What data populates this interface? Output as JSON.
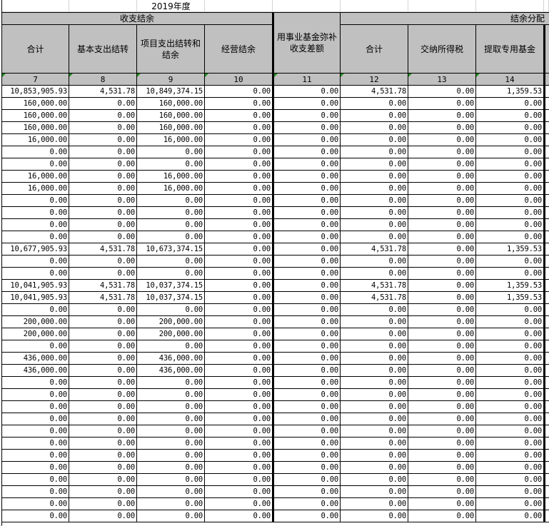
{
  "year_label": "2019年度",
  "groups": {
    "surplus": "收支结余",
    "distribution": "结余分配"
  },
  "columns": [
    {
      "label": "合计",
      "no": "7"
    },
    {
      "label": "基本支出结转",
      "no": "8"
    },
    {
      "label": "项目支出结转和结余",
      "no": "9"
    },
    {
      "label": "经营结余",
      "no": "10"
    },
    {
      "label": "用事业基金弥补收支差额",
      "no": "11"
    },
    {
      "label": "合计",
      "no": "12"
    },
    {
      "label": "交纳所得税",
      "no": "13"
    },
    {
      "label": "提取专用基金",
      "no": "14"
    }
  ],
  "colors": {
    "header_bg": "#c0c0c0",
    "marker": "#1e8c1e"
  },
  "rows": [
    [
      "10,853,905.93",
      "4,531.78",
      "10,849,374.15",
      "0.00",
      "0.00",
      "4,531.78",
      "0.00",
      "1,359.53"
    ],
    [
      "160,000.00",
      "0.00",
      "160,000.00",
      "0.00",
      "0.00",
      "0.00",
      "0.00",
      "0.00"
    ],
    [
      "160,000.00",
      "0.00",
      "160,000.00",
      "0.00",
      "0.00",
      "0.00",
      "0.00",
      "0.00"
    ],
    [
      "160,000.00",
      "0.00",
      "160,000.00",
      "0.00",
      "0.00",
      "0.00",
      "0.00",
      "0.00"
    ],
    [
      "16,000.00",
      "0.00",
      "16,000.00",
      "0.00",
      "0.00",
      "0.00",
      "0.00",
      "0.00"
    ],
    [
      "0.00",
      "0.00",
      "0.00",
      "0.00",
      "0.00",
      "0.00",
      "0.00",
      "0.00"
    ],
    [
      "0.00",
      "0.00",
      "0.00",
      "0.00",
      "0.00",
      "0.00",
      "0.00",
      "0.00"
    ],
    [
      "16,000.00",
      "0.00",
      "16,000.00",
      "0.00",
      "0.00",
      "0.00",
      "0.00",
      "0.00"
    ],
    [
      "16,000.00",
      "0.00",
      "16,000.00",
      "0.00",
      "0.00",
      "0.00",
      "0.00",
      "0.00"
    ],
    [
      "0.00",
      "0.00",
      "0.00",
      "0.00",
      "0.00",
      "0.00",
      "0.00",
      "0.00"
    ],
    [
      "0.00",
      "0.00",
      "0.00",
      "0.00",
      "0.00",
      "0.00",
      "0.00",
      "0.00"
    ],
    [
      "0.00",
      "0.00",
      "0.00",
      "0.00",
      "0.00",
      "0.00",
      "0.00",
      "0.00"
    ],
    [
      "0.00",
      "0.00",
      "0.00",
      "0.00",
      "0.00",
      "0.00",
      "0.00",
      "0.00"
    ],
    [
      "10,677,905.93",
      "4,531.78",
      "10,673,374.15",
      "0.00",
      "0.00",
      "4,531.78",
      "0.00",
      "1,359.53"
    ],
    [
      "0.00",
      "0.00",
      "0.00",
      "0.00",
      "0.00",
      "0.00",
      "0.00",
      "0.00"
    ],
    [
      "0.00",
      "0.00",
      "0.00",
      "0.00",
      "0.00",
      "0.00",
      "0.00",
      "0.00"
    ],
    [
      "10,041,905.93",
      "4,531.78",
      "10,037,374.15",
      "0.00",
      "0.00",
      "4,531.78",
      "0.00",
      "1,359.53"
    ],
    [
      "10,041,905.93",
      "4,531.78",
      "10,037,374.15",
      "0.00",
      "0.00",
      "4,531.78",
      "0.00",
      "1,359.53"
    ],
    [
      "0.00",
      "0.00",
      "0.00",
      "0.00",
      "0.00",
      "0.00",
      "0.00",
      "0.00"
    ],
    [
      "200,000.00",
      "0.00",
      "200,000.00",
      "0.00",
      "0.00",
      "0.00",
      "0.00",
      "0.00"
    ],
    [
      "200,000.00",
      "0.00",
      "200,000.00",
      "0.00",
      "0.00",
      "0.00",
      "0.00",
      "0.00"
    ],
    [
      "0.00",
      "0.00",
      "0.00",
      "0.00",
      "0.00",
      "0.00",
      "0.00",
      "0.00"
    ],
    [
      "436,000.00",
      "0.00",
      "436,000.00",
      "0.00",
      "0.00",
      "0.00",
      "0.00",
      "0.00"
    ],
    [
      "436,000.00",
      "0.00",
      "436,000.00",
      "0.00",
      "0.00",
      "0.00",
      "0.00",
      "0.00"
    ],
    [
      "0.00",
      "0.00",
      "0.00",
      "0.00",
      "0.00",
      "0.00",
      "0.00",
      "0.00"
    ],
    [
      "0.00",
      "0.00",
      "0.00",
      "0.00",
      "0.00",
      "0.00",
      "0.00",
      "0.00"
    ],
    [
      "0.00",
      "0.00",
      "0.00",
      "0.00",
      "0.00",
      "0.00",
      "0.00",
      "0.00"
    ],
    [
      "0.00",
      "0.00",
      "0.00",
      "0.00",
      "0.00",
      "0.00",
      "0.00",
      "0.00"
    ],
    [
      "0.00",
      "0.00",
      "0.00",
      "0.00",
      "0.00",
      "0.00",
      "0.00",
      "0.00"
    ],
    [
      "0.00",
      "0.00",
      "0.00",
      "0.00",
      "0.00",
      "0.00",
      "0.00",
      "0.00"
    ],
    [
      "0.00",
      "0.00",
      "0.00",
      "0.00",
      "0.00",
      "0.00",
      "0.00",
      "0.00"
    ],
    [
      "0.00",
      "0.00",
      "0.00",
      "0.00",
      "0.00",
      "0.00",
      "0.00",
      "0.00"
    ],
    [
      "0.00",
      "0.00",
      "0.00",
      "0.00",
      "0.00",
      "0.00",
      "0.00",
      "0.00"
    ],
    [
      "0.00",
      "0.00",
      "0.00",
      "0.00",
      "0.00",
      "0.00",
      "0.00",
      "0.00"
    ],
    [
      "0.00",
      "0.00",
      "0.00",
      "0.00",
      "0.00",
      "0.00",
      "0.00",
      "0.00"
    ],
    [
      "0.00",
      "0.00",
      "0.00",
      "0.00",
      "0.00",
      "0.00",
      "0.00",
      "0.00"
    ]
  ]
}
